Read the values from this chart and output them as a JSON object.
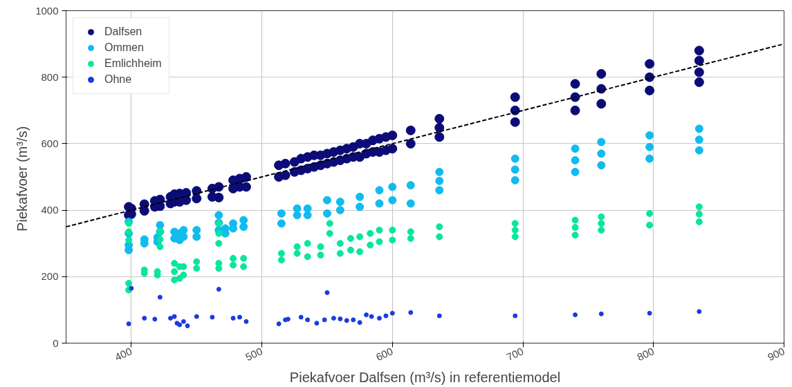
{
  "chart_data": {
    "type": "scatter",
    "xlabel": "Piekafvoer Dalfsen (m³/s) in referentiemodel",
    "ylabel": "Piekafvoer  (m³/s)",
    "xlim": [
      350,
      900
    ],
    "xticks": [
      400,
      500,
      600,
      700,
      800,
      900
    ],
    "ylim": [
      0,
      1000
    ],
    "yticks": [
      0,
      200,
      400,
      600,
      800,
      1000
    ],
    "grid": true,
    "legend": "top left",
    "marker": "circle",
    "series": [
      {
        "name": "Dalfsen",
        "color": "#0c0c78",
        "x": [
          398,
          398,
          400,
          400,
          410,
          410,
          418,
          418,
          422,
          422,
          430,
          430,
          433,
          433,
          437,
          437,
          442,
          442,
          450,
          450,
          462,
          462,
          467,
          467,
          478,
          478,
          483,
          483,
          488,
          488,
          513,
          513,
          518,
          518,
          525,
          525,
          530,
          530,
          535,
          535,
          540,
          540,
          545,
          545,
          550,
          550,
          555,
          555,
          560,
          560,
          565,
          565,
          570,
          570,
          575,
          575,
          580,
          580,
          585,
          585,
          590,
          590,
          595,
          595,
          600,
          600,
          614,
          614,
          636,
          636,
          636,
          694,
          694,
          694,
          740,
          740,
          740,
          760,
          760,
          760,
          797,
          797,
          797,
          835,
          835,
          835,
          835
        ],
        "values": [
          385,
          410,
          388,
          405,
          398,
          418,
          410,
          428,
          412,
          432,
          420,
          440,
          425,
          448,
          425,
          450,
          430,
          452,
          435,
          458,
          440,
          465,
          438,
          470,
          465,
          490,
          470,
          495,
          470,
          500,
          500,
          535,
          505,
          540,
          515,
          545,
          520,
          555,
          525,
          560,
          530,
          565,
          535,
          565,
          540,
          570,
          545,
          575,
          550,
          580,
          555,
          585,
          560,
          590,
          560,
          600,
          570,
          600,
          575,
          610,
          575,
          615,
          580,
          620,
          585,
          625,
          600,
          640,
          620,
          648,
          675,
          665,
          700,
          740,
          700,
          740,
          780,
          720,
          765,
          810,
          760,
          800,
          840,
          785,
          815,
          850,
          880
        ]
      },
      {
        "name": "Ommen",
        "color": "#12bbee",
        "x": [
          398,
          398,
          398,
          398,
          410,
          410,
          420,
          420,
          422,
          422,
          433,
          433,
          437,
          437,
          440,
          440,
          450,
          450,
          467,
          467,
          467,
          472,
          472,
          478,
          478,
          486,
          486,
          515,
          515,
          527,
          527,
          535,
          535,
          550,
          550,
          560,
          560,
          575,
          575,
          590,
          590,
          600,
          600,
          614,
          614,
          636,
          636,
          636,
          694,
          694,
          694,
          740,
          740,
          740,
          760,
          760,
          760,
          797,
          797,
          797,
          835,
          835,
          835
        ],
        "values": [
          280,
          295,
          330,
          365,
          300,
          312,
          305,
          318,
          335,
          355,
          315,
          335,
          310,
          330,
          320,
          340,
          320,
          340,
          340,
          362,
          385,
          330,
          345,
          345,
          360,
          350,
          370,
          360,
          390,
          385,
          405,
          385,
          405,
          390,
          430,
          400,
          425,
          410,
          440,
          420,
          460,
          430,
          470,
          420,
          475,
          460,
          488,
          515,
          490,
          522,
          555,
          515,
          550,
          585,
          535,
          570,
          605,
          555,
          590,
          625,
          580,
          612,
          645
        ]
      },
      {
        "name": "Emlichheim",
        "color": "#08e6a0",
        "x": [
          398,
          398,
          398,
          398,
          398,
          410,
          410,
          420,
          420,
          422,
          422,
          422,
          433,
          433,
          433,
          437,
          437,
          440,
          440,
          450,
          450,
          467,
          467,
          467,
          467,
          467,
          478,
          478,
          486,
          486,
          515,
          515,
          527,
          527,
          535,
          535,
          545,
          545,
          552,
          552,
          560,
          560,
          568,
          568,
          575,
          575,
          583,
          583,
          590,
          590,
          600,
          600,
          614,
          614,
          636,
          636,
          694,
          694,
          694,
          740,
          740,
          740,
          760,
          760,
          760,
          797,
          797,
          835,
          835,
          835
        ],
        "values": [
          160,
          180,
          310,
          335,
          360,
          210,
          220,
          205,
          215,
          290,
          312,
          335,
          190,
          215,
          240,
          195,
          230,
          205,
          230,
          225,
          245,
          300,
          330,
          360,
          225,
          240,
          235,
          255,
          230,
          255,
          250,
          270,
          270,
          290,
          260,
          300,
          265,
          290,
          330,
          360,
          270,
          300,
          280,
          315,
          275,
          320,
          295,
          330,
          305,
          340,
          310,
          340,
          315,
          335,
          320,
          350,
          320,
          340,
          360,
          325,
          348,
          370,
          340,
          360,
          380,
          355,
          390,
          365,
          388,
          410
        ]
      },
      {
        "name": "Ohne",
        "color": "#1a3be0",
        "x": [
          398,
          400,
          410,
          418,
          422,
          430,
          433,
          435,
          437,
          440,
          443,
          450,
          462,
          467,
          478,
          483,
          488,
          513,
          518,
          520,
          530,
          535,
          542,
          548,
          550,
          555,
          560,
          565,
          570,
          575,
          580,
          584,
          590,
          595,
          600,
          614,
          636,
          694,
          740,
          760,
          797,
          835
        ],
        "values": [
          58,
          165,
          75,
          72,
          138,
          75,
          80,
          60,
          55,
          65,
          52,
          80,
          78,
          162,
          75,
          78,
          65,
          58,
          70,
          72,
          78,
          70,
          60,
          70,
          152,
          75,
          73,
          68,
          70,
          62,
          85,
          80,
          75,
          82,
          90,
          92,
          82,
          82,
          85,
          88,
          90,
          95
        ]
      },
      {
        "type": "line",
        "color": "#000000",
        "line_style": "dashed",
        "marker": "none",
        "x": [
          350,
          900
        ],
        "values": [
          350,
          900
        ]
      }
    ]
  }
}
